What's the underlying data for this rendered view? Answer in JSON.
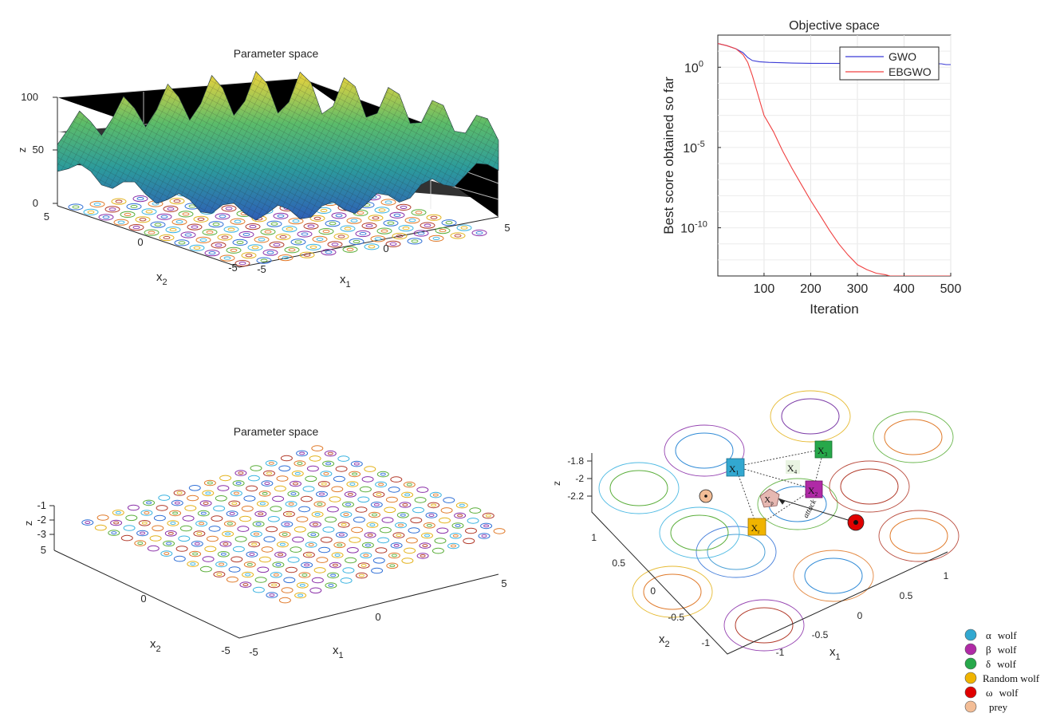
{
  "colors": {
    "gwo": "#3b3bd6",
    "ebgwo": "#f04040",
    "alpha": "#32a8d0",
    "beta": "#b02aa6",
    "delta": "#27a84a",
    "random": "#f0b400",
    "omega": "#e00000",
    "prey": "#f3bd96"
  },
  "surface3d": {
    "title": "Parameter space",
    "z_label": "z",
    "x1_label": "x",
    "x1_sub": "1",
    "x2_label": "x",
    "x2_sub": "2",
    "z_ticks": [
      "100",
      "50",
      "0"
    ],
    "x1_ticks": [
      "-5",
      "0",
      "5"
    ],
    "x2_ticks": [
      "5",
      "0",
      "-5"
    ]
  },
  "contour3d": {
    "title": "Parameter space",
    "z_label": "z",
    "x1_label": "x",
    "x1_sub": "1",
    "x2_label": "x",
    "x2_sub": "2",
    "z_ticks": [
      "-1",
      "-2",
      "-3"
    ],
    "x1_ticks": [
      "-5",
      "0",
      "5"
    ],
    "x2_ticks": [
      "5",
      "0",
      "-5"
    ]
  },
  "zoom": {
    "z_label": "z",
    "x1_label": "x",
    "x1_sub": "1",
    "x2_label": "x",
    "x2_sub": "2",
    "z_ticks": [
      "-1.8",
      "-2",
      "-2.2"
    ],
    "x1_ticks": [
      "-1",
      "-0.5",
      "0",
      "0.5",
      "1"
    ],
    "x2_ticks": [
      "1",
      "0.5",
      "0",
      "-0.5",
      "-1"
    ],
    "attack_label": "attack",
    "markers": {
      "x1": {
        "sym": "X",
        "sub": "1"
      },
      "x2": {
        "sym": "X",
        "sub": "2"
      },
      "x3": {
        "sym": "X",
        "sub": "3"
      },
      "x4": {
        "sym": "X",
        "sub": "4"
      },
      "xr": {
        "sym": "X",
        "sub": "r"
      },
      "xp": {
        "sym": "X",
        "sub": "p"
      }
    }
  },
  "legend": {
    "items": [
      {
        "greek": "α",
        "text": "wolf"
      },
      {
        "greek": "β",
        "text": "wolf"
      },
      {
        "greek": "δ",
        "text": "wolf"
      },
      {
        "greek": "",
        "text": "Random wolf"
      },
      {
        "greek": "ω",
        "text": "wolf"
      },
      {
        "greek": "",
        "text": "prey"
      }
    ]
  },
  "chart_data": [
    {
      "type": "line",
      "title": "Objective space",
      "xlabel": "Iteration",
      "ylabel": "Best score obtained so far",
      "yscale": "log",
      "xlim": [
        1,
        500
      ],
      "ylim": [
        1e-13,
        100
      ],
      "x_ticks": [
        100,
        200,
        300,
        400,
        500
      ],
      "x_tick_labels": [
        "100",
        "200",
        "300",
        "400",
        "500"
      ],
      "y_ticks": [
        1,
        1e-05,
        1e-10
      ],
      "y_tick_labels": [
        {
          "base": "10",
          "exp": "0"
        },
        {
          "base": "10",
          "exp": "-5"
        },
        {
          "base": "10",
          "exp": "-10"
        }
      ],
      "legend_position": "top-right",
      "grid": true,
      "series": [
        {
          "name": "GWO",
          "color_key": "gwo",
          "x": [
            1,
            20,
            40,
            55,
            65,
            75,
            90,
            110,
            140,
            160,
            200,
            300,
            400,
            480,
            490,
            500
          ],
          "y": [
            30,
            22,
            14,
            8,
            4,
            2.6,
            2.2,
            2.0,
            1.9,
            1.8,
            1.75,
            1.7,
            1.65,
            1.62,
            1.45,
            1.45
          ]
        },
        {
          "name": "EBGWO",
          "color_key": "ebgwo",
          "x": [
            1,
            20,
            40,
            55,
            65,
            75,
            85,
            100,
            120,
            140,
            160,
            180,
            200,
            220,
            240,
            260,
            280,
            300,
            320,
            340,
            360,
            370,
            380,
            500
          ],
          "y": [
            30,
            22,
            14,
            6,
            2,
            0.3,
            0.03,
            0.001,
            0.0001,
            6e-06,
            5e-07,
            5e-08,
            5e-09,
            6e-10,
            7e-11,
            1e-11,
            2e-12,
            5e-13,
            2.5e-13,
            1.5e-13,
            1.2e-13,
            1e-13,
            1e-13,
            1e-13
          ]
        }
      ]
    }
  ]
}
